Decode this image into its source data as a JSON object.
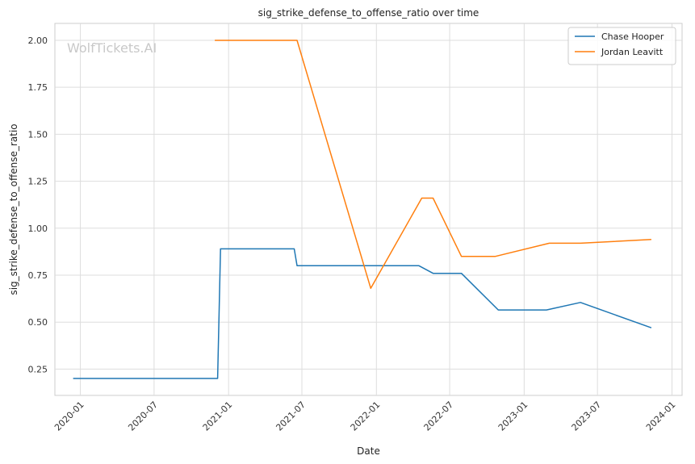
{
  "chart_data": {
    "type": "line",
    "title": "sig_strike_defense_to_offense_ratio over time",
    "xlabel": "Date",
    "ylabel": "sig_strike_defense_to_offense_ratio",
    "watermark": "WolfTickets.AI",
    "x_ticks": [
      "2020-01",
      "2020-07",
      "2021-01",
      "2021-07",
      "2022-01",
      "2022-07",
      "2023-01",
      "2023-07",
      "2024-01"
    ],
    "y_ticks": [
      "0.25",
      "0.50",
      "0.75",
      "1.00",
      "1.25",
      "1.50",
      "1.75",
      "2.00"
    ],
    "ylim": [
      0.11,
      2.09
    ],
    "xlim": [
      "2019-10-30",
      "2024-01-26"
    ],
    "grid": true,
    "legend_position": "top-right",
    "series": [
      {
        "name": "Chase Hooper",
        "color": "#1f77b4",
        "points": [
          {
            "x": "2019-12-14",
            "y": 0.2
          },
          {
            "x": "2020-12-05",
            "y": 0.2
          },
          {
            "x": "2020-12-12",
            "y": 0.89
          },
          {
            "x": "2021-06-12",
            "y": 0.89
          },
          {
            "x": "2021-06-19",
            "y": 0.8
          },
          {
            "x": "2022-04-16",
            "y": 0.8
          },
          {
            "x": "2022-05-21",
            "y": 0.76
          },
          {
            "x": "2022-07-30",
            "y": 0.76
          },
          {
            "x": "2022-10-29",
            "y": 0.565
          },
          {
            "x": "2023-02-25",
            "y": 0.565
          },
          {
            "x": "2023-05-20",
            "y": 0.605
          },
          {
            "x": "2023-11-11",
            "y": 0.47
          }
        ]
      },
      {
        "name": "Jordan Leavitt",
        "color": "#ff7f0e",
        "points": [
          {
            "x": "2020-11-28",
            "y": 2.0
          },
          {
            "x": "2021-06-19",
            "y": 2.0
          },
          {
            "x": "2021-12-18",
            "y": 0.68
          },
          {
            "x": "2022-04-23",
            "y": 1.16
          },
          {
            "x": "2022-05-21",
            "y": 1.16
          },
          {
            "x": "2022-07-30",
            "y": 0.85
          },
          {
            "x": "2022-10-22",
            "y": 0.85
          },
          {
            "x": "2023-03-04",
            "y": 0.92
          },
          {
            "x": "2023-05-20",
            "y": 0.92
          },
          {
            "x": "2023-11-11",
            "y": 0.94
          }
        ]
      }
    ]
  }
}
